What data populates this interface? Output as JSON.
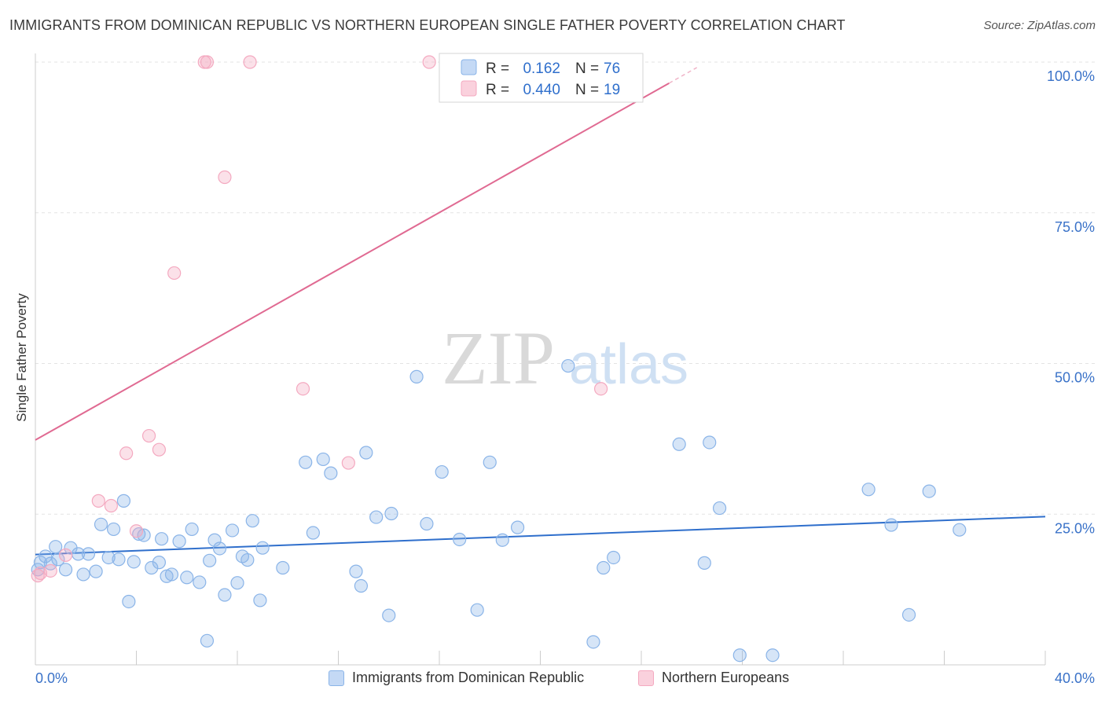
{
  "title": "IMMIGRANTS FROM DOMINICAN REPUBLIC VS NORTHERN EUROPEAN SINGLE FATHER POVERTY CORRELATION CHART",
  "source": "Source: ZipAtlas.com",
  "watermark": {
    "zip": "ZIP",
    "atlas": "atlas"
  },
  "chart_data": {
    "type": "scatter",
    "xlabel": "",
    "ylabel": "Single Father Poverty",
    "xlim": [
      0,
      40
    ],
    "ylim": [
      0,
      100
    ],
    "x_tick_labels": [
      "0.0%",
      "40.0%"
    ],
    "y_tick_labels": [
      "100.0%",
      "75.0%",
      "50.0%",
      "25.0%"
    ],
    "y_ticks": [
      100,
      75,
      50,
      25
    ],
    "grid": true,
    "legend_top": {
      "placement": "top-center",
      "rows": [
        {
          "r_label": "R =",
          "r_value": "0.162",
          "n_label": "N =",
          "n_value": "76"
        },
        {
          "r_label": "R =",
          "r_value": "0.440",
          "n_label": "N =",
          "n_value": "19"
        }
      ]
    },
    "series": [
      {
        "name": "Immigrants from Dominican Republic",
        "color": "#8ab4e8",
        "line_color": "#2f6fcc",
        "trend": {
          "x": [
            0,
            40
          ],
          "y": [
            18.3,
            24.6
          ]
        },
        "points": [
          [
            0.1,
            15.8
          ],
          [
            0.2,
            17.0
          ],
          [
            0.4,
            18.0
          ],
          [
            0.6,
            16.8
          ],
          [
            0.8,
            19.6
          ],
          [
            0.9,
            17.5
          ],
          [
            1.2,
            15.8
          ],
          [
            1.4,
            19.4
          ],
          [
            1.7,
            18.4
          ],
          [
            1.9,
            15.0
          ],
          [
            2.1,
            18.4
          ],
          [
            2.4,
            15.5
          ],
          [
            2.6,
            23.3
          ],
          [
            2.9,
            17.8
          ],
          [
            3.1,
            22.5
          ],
          [
            3.3,
            17.5
          ],
          [
            3.5,
            27.2
          ],
          [
            3.7,
            10.5
          ],
          [
            3.9,
            17.1
          ],
          [
            4.1,
            21.7
          ],
          [
            4.3,
            21.5
          ],
          [
            4.6,
            16.1
          ],
          [
            4.9,
            17.0
          ],
          [
            5.0,
            20.9
          ],
          [
            5.2,
            14.7
          ],
          [
            5.4,
            15.0
          ],
          [
            5.7,
            20.5
          ],
          [
            6.0,
            14.5
          ],
          [
            6.2,
            22.5
          ],
          [
            6.5,
            13.7
          ],
          [
            6.8,
            4.0
          ],
          [
            6.9,
            17.3
          ],
          [
            7.1,
            20.7
          ],
          [
            7.3,
            19.3
          ],
          [
            7.5,
            11.6
          ],
          [
            7.8,
            22.3
          ],
          [
            8.0,
            13.6
          ],
          [
            8.2,
            18.0
          ],
          [
            8.4,
            17.4
          ],
          [
            8.6,
            23.9
          ],
          [
            8.9,
            10.7
          ],
          [
            9.0,
            19.4
          ],
          [
            9.8,
            16.1
          ],
          [
            11.0,
            21.9
          ],
          [
            10.7,
            33.6
          ],
          [
            11.4,
            34.1
          ],
          [
            11.7,
            31.8
          ],
          [
            12.7,
            15.5
          ],
          [
            12.9,
            13.1
          ],
          [
            13.1,
            35.2
          ],
          [
            13.5,
            24.5
          ],
          [
            14.0,
            8.2
          ],
          [
            14.1,
            25.1
          ],
          [
            15.1,
            47.8
          ],
          [
            15.5,
            23.4
          ],
          [
            16.1,
            32.0
          ],
          [
            16.8,
            20.8
          ],
          [
            17.5,
            9.1
          ],
          [
            18.0,
            33.6
          ],
          [
            18.5,
            20.7
          ],
          [
            19.1,
            22.8
          ],
          [
            21.1,
            49.6
          ],
          [
            22.1,
            3.8
          ],
          [
            22.5,
            16.1
          ],
          [
            22.9,
            17.8
          ],
          [
            25.5,
            36.6
          ],
          [
            26.5,
            16.9
          ],
          [
            26.7,
            36.9
          ],
          [
            27.1,
            26.0
          ],
          [
            27.9,
            1.6
          ],
          [
            29.2,
            1.6
          ],
          [
            33.0,
            29.1
          ],
          [
            33.9,
            23.2
          ],
          [
            34.6,
            8.3
          ],
          [
            35.4,
            28.8
          ],
          [
            36.6,
            22.4
          ]
        ]
      },
      {
        "name": "Northern Europeans",
        "color": "#f4a9c0",
        "line_color": "#e06a92",
        "trend": {
          "x": [
            0,
            25.1
          ],
          "y": [
            37.3,
            96.5
          ]
        },
        "points": [
          [
            0.2,
            15.2
          ],
          [
            0.6,
            15.6
          ],
          [
            1.2,
            18.2
          ],
          [
            2.5,
            27.2
          ],
          [
            3.0,
            26.4
          ],
          [
            3.6,
            35.1
          ],
          [
            4.0,
            22.2
          ],
          [
            4.5,
            38.0
          ],
          [
            4.9,
            35.7
          ],
          [
            5.5,
            65.0
          ],
          [
            6.7,
            100.0
          ],
          [
            6.8,
            100.0
          ],
          [
            8.5,
            100.0
          ],
          [
            7.5,
            80.9
          ],
          [
            10.6,
            45.8
          ],
          [
            12.4,
            33.5
          ],
          [
            15.6,
            100.0
          ],
          [
            22.4,
            45.8
          ],
          [
            0.1,
            14.8
          ]
        ]
      }
    ]
  }
}
